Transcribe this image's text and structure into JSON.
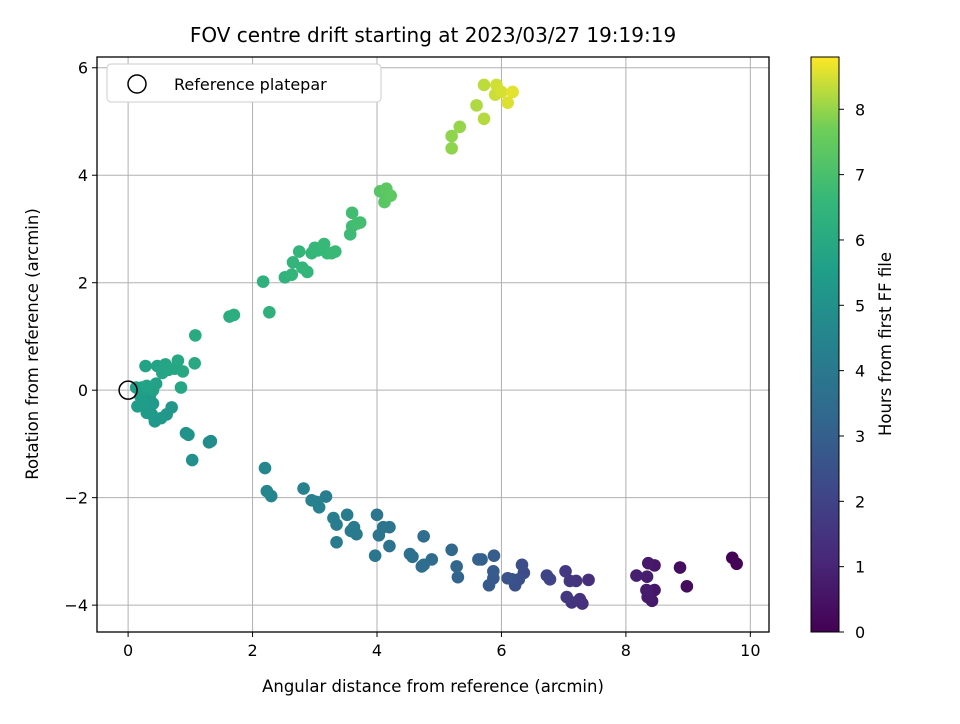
{
  "chart_data": {
    "type": "scatter",
    "title": "FOV centre drift starting at 2023/03/27 19:19:19",
    "xlabel": "Angular distance from reference (arcmin)",
    "ylabel": "Rotation from reference (arcmin)",
    "xlim": [
      -0.5,
      10.3
    ],
    "ylim": [
      -4.5,
      6.2
    ],
    "xticks": [
      0,
      2,
      4,
      6,
      8,
      10
    ],
    "yticks": [
      -4,
      -2,
      0,
      2,
      4,
      6
    ],
    "grid": true,
    "legend": {
      "position": "top-left",
      "entries": [
        "Reference platepar"
      ]
    },
    "reference_point": {
      "x": 0,
      "y": 0
    },
    "colorbar": {
      "label": "Hours from first FF file",
      "min": 0,
      "max": 8.8,
      "ticks": [
        0,
        1,
        2,
        3,
        4,
        5,
        6,
        7,
        8
      ],
      "colormap": "viridis"
    },
    "series": [
      {
        "values": [
          [
            9.71,
            -3.12,
            0.05
          ],
          [
            9.78,
            -3.23,
            0.1
          ],
          [
            8.98,
            -3.65,
            0.3
          ],
          [
            8.87,
            -3.3,
            0.35
          ],
          [
            8.46,
            -3.72,
            0.6
          ],
          [
            8.42,
            -3.92,
            0.65
          ],
          [
            8.35,
            -3.85,
            0.7
          ],
          [
            8.46,
            -3.26,
            0.6
          ],
          [
            8.36,
            -3.22,
            0.7
          ],
          [
            8.33,
            -3.72,
            0.75
          ],
          [
            8.34,
            -3.47,
            0.8
          ],
          [
            8.17,
            -3.45,
            0.85
          ],
          [
            7.4,
            -3.53,
            1.3
          ],
          [
            7.3,
            -3.97,
            1.35
          ],
          [
            7.26,
            -3.89,
            1.4
          ],
          [
            7.2,
            -3.55,
            1.45
          ],
          [
            7.13,
            -3.95,
            1.5
          ],
          [
            7.1,
            -3.55,
            1.55
          ],
          [
            7.05,
            -3.85,
            1.6
          ],
          [
            7.03,
            -3.37,
            1.65
          ],
          [
            6.78,
            -3.52,
            2.0
          ],
          [
            6.73,
            -3.45,
            2.05
          ],
          [
            6.36,
            -3.4,
            2.3
          ],
          [
            6.33,
            -3.25,
            2.35
          ],
          [
            6.28,
            -3.52,
            2.4
          ],
          [
            6.22,
            -3.63,
            2.45
          ],
          [
            6.17,
            -3.52,
            2.5
          ],
          [
            6.1,
            -3.5,
            2.55
          ],
          [
            5.87,
            -3.5,
            2.75
          ],
          [
            5.8,
            -3.63,
            2.8
          ],
          [
            5.87,
            -3.37,
            2.85
          ],
          [
            5.88,
            -3.08,
            2.9
          ],
          [
            5.68,
            -3.15,
            3.0
          ],
          [
            5.63,
            -3.15,
            3.05
          ],
          [
            5.3,
            -3.48,
            3.2
          ],
          [
            5.28,
            -3.28,
            3.25
          ],
          [
            5.2,
            -2.97,
            3.3
          ],
          [
            4.88,
            -3.15,
            3.45
          ],
          [
            4.75,
            -3.25,
            3.5
          ],
          [
            4.72,
            -3.28,
            3.55
          ],
          [
            4.75,
            -2.72,
            3.55
          ],
          [
            4.57,
            -3.1,
            3.65
          ],
          [
            4.53,
            -3.05,
            3.7
          ],
          [
            4.2,
            -2.9,
            3.8
          ],
          [
            4.2,
            -2.55,
            3.85
          ],
          [
            4.1,
            -2.55,
            3.85
          ],
          [
            4.03,
            -2.7,
            3.85
          ],
          [
            4.0,
            -2.32,
            3.9
          ],
          [
            3.97,
            -3.08,
            3.9
          ],
          [
            3.67,
            -2.68,
            4.0
          ],
          [
            3.63,
            -2.55,
            4.05
          ],
          [
            3.58,
            -2.62,
            4.05
          ],
          [
            3.52,
            -2.32,
            4.1
          ],
          [
            3.35,
            -2.5,
            4.15
          ],
          [
            3.35,
            -2.83,
            4.15
          ],
          [
            3.3,
            -2.38,
            4.2
          ],
          [
            3.18,
            -1.98,
            4.25
          ],
          [
            3.07,
            -2.18,
            4.3
          ],
          [
            3.03,
            -2.08,
            4.3
          ],
          [
            2.95,
            -2.05,
            4.35
          ],
          [
            2.82,
            -1.83,
            4.4
          ],
          [
            2.3,
            -1.97,
            4.5
          ],
          [
            2.23,
            -1.88,
            4.55
          ],
          [
            2.2,
            -1.45,
            4.55
          ],
          [
            1.33,
            -0.95,
            4.85
          ],
          [
            1.3,
            -0.97,
            4.85
          ],
          [
            1.03,
            -1.3,
            5.0
          ],
          [
            0.97,
            -0.83,
            5.05
          ],
          [
            0.93,
            -0.8,
            5.05
          ],
          [
            0.7,
            -0.32,
            5.2
          ],
          [
            0.62,
            -0.45,
            5.25
          ],
          [
            0.53,
            -0.52,
            5.25
          ],
          [
            0.43,
            -0.58,
            5.3
          ],
          [
            0.4,
            -0.25,
            5.35
          ],
          [
            0.38,
            -0.45,
            5.35
          ],
          [
            0.35,
            -0.1,
            5.4
          ],
          [
            0.3,
            -0.42,
            5.4
          ],
          [
            0.27,
            -0.28,
            5.4
          ],
          [
            0.22,
            -0.25,
            5.45
          ],
          [
            0.2,
            -0.12,
            5.45
          ],
          [
            0.15,
            -0.3,
            5.45
          ],
          [
            0.13,
            0.05,
            5.5
          ],
          [
            0.22,
            0.05,
            5.55
          ],
          [
            0.3,
            0.02,
            5.6
          ],
          [
            0.4,
            0.0,
            5.65
          ],
          [
            0.45,
            0.12,
            5.65
          ],
          [
            0.3,
            0.08,
            5.7
          ],
          [
            0.28,
            0.45,
            5.7
          ],
          [
            0.47,
            0.45,
            5.75
          ],
          [
            0.55,
            0.32,
            5.8
          ],
          [
            0.6,
            0.48,
            5.8
          ],
          [
            0.65,
            0.38,
            5.85
          ],
          [
            0.75,
            0.4,
            5.85
          ],
          [
            0.8,
            0.55,
            5.9
          ],
          [
            0.85,
            0.05,
            5.85
          ],
          [
            0.88,
            0.35,
            5.95
          ],
          [
            1.07,
            0.5,
            6.0
          ],
          [
            1.08,
            1.02,
            6.05
          ],
          [
            1.63,
            1.37,
            6.15
          ],
          [
            1.7,
            1.4,
            6.2
          ],
          [
            2.17,
            2.02,
            6.3
          ],
          [
            2.27,
            1.45,
            6.3
          ],
          [
            2.52,
            2.1,
            6.4
          ],
          [
            2.65,
            2.38,
            6.45
          ],
          [
            2.63,
            2.15,
            6.45
          ],
          [
            2.75,
            2.58,
            6.5
          ],
          [
            2.8,
            2.28,
            6.5
          ],
          [
            2.88,
            2.2,
            6.55
          ],
          [
            2.95,
            2.55,
            6.55
          ],
          [
            3.0,
            2.65,
            6.6
          ],
          [
            3.05,
            2.6,
            6.6
          ],
          [
            3.15,
            2.72,
            6.65
          ],
          [
            3.2,
            2.55,
            6.65
          ],
          [
            3.27,
            2.55,
            6.7
          ],
          [
            3.33,
            2.58,
            6.7
          ],
          [
            3.57,
            2.9,
            6.75
          ],
          [
            3.6,
            3.05,
            6.8
          ],
          [
            3.6,
            3.3,
            6.85
          ],
          [
            3.68,
            3.1,
            6.9
          ],
          [
            3.73,
            3.12,
            6.9
          ],
          [
            4.05,
            3.7,
            7.25
          ],
          [
            4.12,
            3.5,
            7.3
          ],
          [
            4.15,
            3.75,
            7.35
          ],
          [
            4.22,
            3.62,
            7.4
          ],
          [
            5.2,
            4.5,
            7.95
          ],
          [
            5.2,
            4.73,
            7.95
          ],
          [
            5.33,
            4.9,
            8.0
          ],
          [
            5.6,
            5.3,
            8.2
          ],
          [
            5.72,
            5.05,
            8.25
          ],
          [
            5.72,
            5.68,
            8.3
          ],
          [
            5.9,
            5.5,
            8.4
          ],
          [
            5.92,
            5.68,
            8.45
          ],
          [
            6.0,
            5.55,
            8.5
          ],
          [
            6.1,
            5.35,
            8.55
          ],
          [
            6.18,
            5.55,
            8.6
          ]
        ]
      }
    ]
  }
}
